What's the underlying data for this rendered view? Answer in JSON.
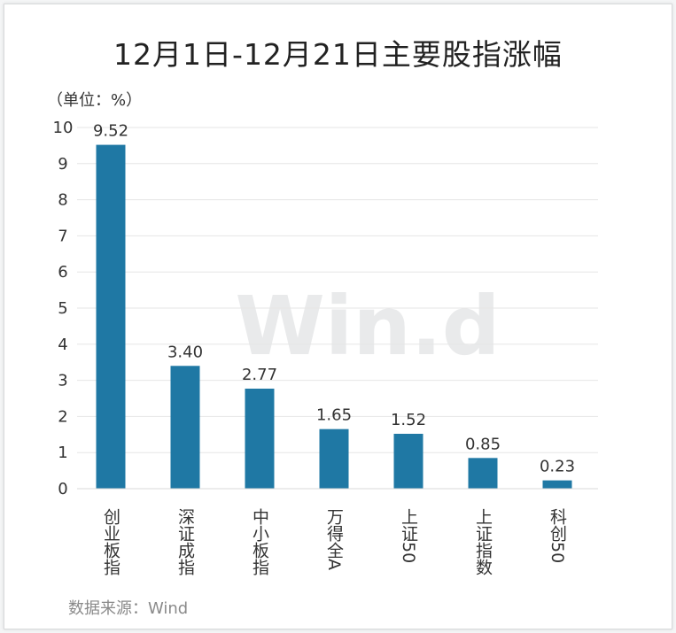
{
  "chart_data": {
    "type": "bar",
    "title": "12月1日-12月21日主要股指涨幅",
    "unit_label": "（单位：%）",
    "source": "数据来源：Wind",
    "watermark": "Win.d",
    "categories": [
      "创业板指",
      "深证成指",
      "中小板指",
      "万得全A",
      "上证50",
      "上证指数",
      "科创50"
    ],
    "values": [
      9.52,
      3.4,
      2.77,
      1.65,
      1.52,
      0.85,
      0.23
    ],
    "value_labels": [
      "9.52",
      "3.40",
      "2.77",
      "1.65",
      "1.52",
      "0.85",
      "0.23"
    ],
    "yticks": [
      0,
      1,
      2,
      3,
      4,
      5,
      6,
      7,
      8,
      9,
      10
    ],
    "ylim": [
      0,
      10
    ],
    "grid": true,
    "bar_color": "#1f78a4",
    "grid_color": "#e6e6e6"
  }
}
